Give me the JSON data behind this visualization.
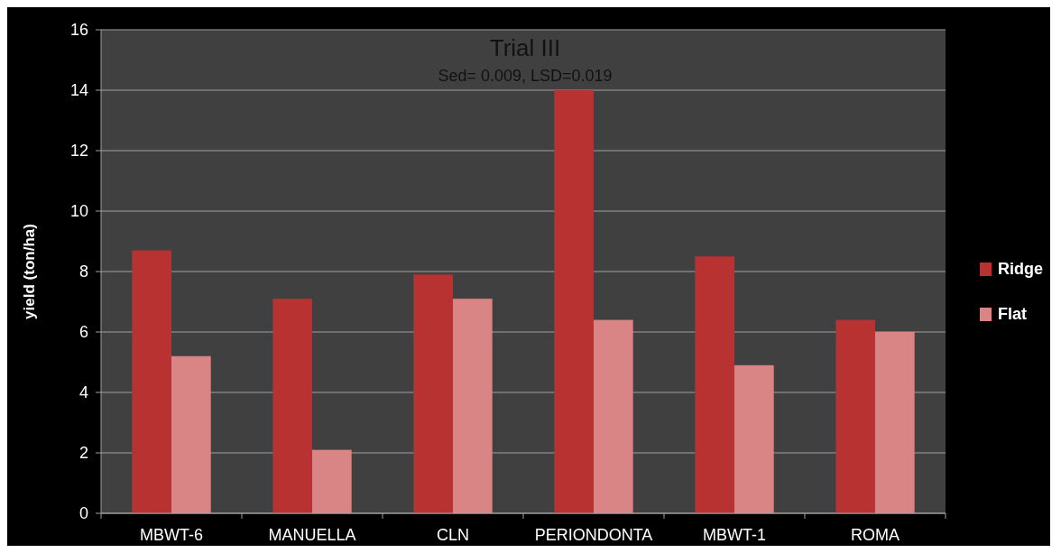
{
  "chart_data": {
    "type": "bar",
    "title": "Trial III",
    "subtitle": "Sed= 0.009, LSD=0.019",
    "ylabel": "yield (ton/ha)",
    "categories": [
      "MBWT-6",
      "MANUELLA",
      "CLN",
      "PERIONDONTA",
      "MBWT-1",
      "ROMA"
    ],
    "series": [
      {
        "name": "Ridge",
        "color": "#b83232",
        "values": [
          8.7,
          7.1,
          7.9,
          14.0,
          8.5,
          6.4
        ]
      },
      {
        "name": "Flat",
        "color": "#d98585",
        "values": [
          5.2,
          2.1,
          7.1,
          6.4,
          4.9,
          6.0
        ]
      }
    ],
    "ylim": [
      0,
      16
    ],
    "yticks": [
      0,
      2,
      4,
      6,
      8,
      10,
      12,
      14,
      16
    ],
    "grid": "y",
    "legend": "right"
  }
}
